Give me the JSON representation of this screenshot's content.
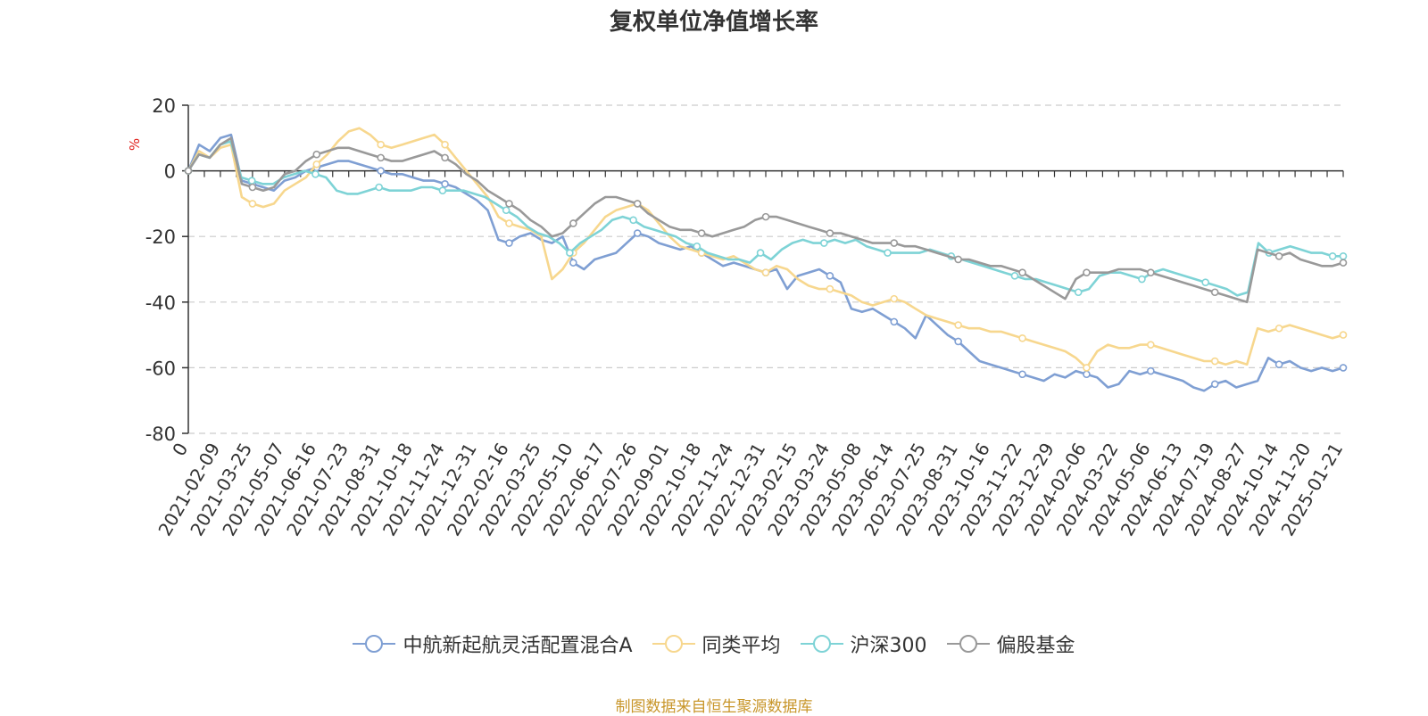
{
  "chart_data": {
    "type": "line",
    "title": "复权单位净值增长率",
    "ylabel": "%",
    "ylim": [
      -80,
      20
    ],
    "yticks": [
      "20",
      "0",
      "-20",
      "-40",
      "-60",
      "-80"
    ],
    "x_origin_label": "0",
    "xticks": [
      "2021-02-09",
      "2021-03-25",
      "2021-05-07",
      "2021-06-16",
      "2021-07-23",
      "2021-08-31",
      "2021-10-18",
      "2021-11-24",
      "2021-12-31",
      "2022-02-16",
      "2022-03-25",
      "2022-05-10",
      "2022-06-17",
      "2022-07-26",
      "2022-09-01",
      "2022-10-18",
      "2022-11-24",
      "2022-12-31",
      "2023-02-15",
      "2023-03-24",
      "2023-05-08",
      "2023-06-14",
      "2023-07-25",
      "2023-08-31",
      "2023-10-16",
      "2023-11-22",
      "2023-12-29",
      "2024-02-06",
      "2024-03-22",
      "2024-05-06",
      "2024-06-13",
      "2024-07-19",
      "2024-08-27",
      "2024-10-14",
      "2024-11-20",
      "2025-01-21"
    ],
    "grid": true,
    "legend_position": "bottom",
    "series": [
      {
        "name": "中航新起航灵活配置混合A",
        "color": "#7f9fd3",
        "values": [
          0,
          8,
          6,
          10,
          11,
          -3,
          -4,
          -5,
          -6,
          -3,
          -2,
          0,
          1,
          2,
          3,
          3,
          2,
          1,
          0,
          -1,
          -1,
          -2,
          -3,
          -3,
          -4,
          -5,
          -7,
          -9,
          -12,
          -21,
          -22,
          -20,
          -19,
          -21,
          -22,
          -20,
          -28,
          -30,
          -27,
          -26,
          -25,
          -22,
          -19,
          -20,
          -22,
          -23,
          -24,
          -23,
          -25,
          -27,
          -29,
          -28,
          -29,
          -30,
          -31,
          -30,
          -36,
          -32,
          -31,
          -30,
          -32,
          -34,
          -42,
          -43,
          -42,
          -44,
          -46,
          -48,
          -51,
          -44,
          -47,
          -50,
          -52,
          -55,
          -58,
          -59,
          -60,
          -61,
          -62,
          -63,
          -64,
          -62,
          -63,
          -61,
          -62,
          -63,
          -66,
          -65,
          -61,
          -62,
          -61,
          -62,
          -63,
          -64,
          -66,
          -67,
          -65,
          -64,
          -66,
          -65,
          -64,
          -57,
          -59,
          -58,
          -60,
          -61,
          -60,
          -61,
          -60
        ]
      },
      {
        "name": "同类平均",
        "color": "#f7d78e",
        "values": [
          0,
          6,
          4,
          7,
          8,
          -8,
          -10,
          -11,
          -10,
          -6,
          -4,
          -2,
          2,
          5,
          9,
          12,
          13,
          11,
          8,
          7,
          8,
          9,
          10,
          11,
          8,
          4,
          0,
          -4,
          -8,
          -14,
          -16,
          -17,
          -18,
          -20,
          -33,
          -30,
          -25,
          -22,
          -18,
          -14,
          -12,
          -11,
          -10,
          -12,
          -16,
          -20,
          -23,
          -24,
          -25,
          -26,
          -27,
          -26,
          -28,
          -30,
          -31,
          -29,
          -30,
          -33,
          -35,
          -36,
          -36,
          -37,
          -38,
          -40,
          -41,
          -40,
          -39,
          -40,
          -42,
          -44,
          -45,
          -46,
          -47,
          -48,
          -48,
          -49,
          -49,
          -50,
          -51,
          -52,
          -53,
          -54,
          -55,
          -57,
          -60,
          -55,
          -53,
          -54,
          -54,
          -53,
          -53,
          -54,
          -55,
          -56,
          -57,
          -58,
          -58,
          -59,
          -58,
          -59,
          -48,
          -49,
          -48,
          -47,
          -48,
          -49,
          -50,
          -51,
          -50
        ]
      },
      {
        "name": "沪深300",
        "color": "#7ed3d6",
        "values": [
          0,
          5,
          4,
          8,
          9,
          -2,
          -3,
          -4,
          -4,
          -2,
          -1,
          0,
          -1,
          -2,
          -6,
          -7,
          -7,
          -6,
          -5,
          -6,
          -6,
          -6,
          -5,
          -5,
          -6,
          -6,
          -6,
          -7,
          -8,
          -10,
          -12,
          -14,
          -17,
          -19,
          -20,
          -22,
          -25,
          -22,
          -20,
          -18,
          -15,
          -14,
          -15,
          -17,
          -18,
          -19,
          -20,
          -22,
          -23,
          -25,
          -26,
          -27,
          -27,
          -28,
          -25,
          -27,
          -24,
          -22,
          -21,
          -22,
          -22,
          -21,
          -22,
          -21,
          -23,
          -24,
          -25,
          -25,
          -25,
          -25,
          -24,
          -25,
          -26,
          -27,
          -28,
          -29,
          -30,
          -31,
          -32,
          -33,
          -33,
          -34,
          -35,
          -36,
          -37,
          -36,
          -32,
          -31,
          -31,
          -32,
          -33,
          -31,
          -30,
          -31,
          -32,
          -33,
          -34,
          -35,
          -36,
          -38,
          -37,
          -22,
          -25,
          -24,
          -23,
          -24,
          -25,
          -25,
          -26,
          -26
        ]
      },
      {
        "name": "偏股基金",
        "color": "#999999",
        "values": [
          0,
          5,
          4,
          8,
          10,
          -4,
          -5,
          -6,
          -5,
          -1,
          0,
          3,
          5,
          6,
          7,
          7,
          6,
          5,
          4,
          3,
          3,
          4,
          5,
          6,
          4,
          2,
          -1,
          -3,
          -6,
          -8,
          -10,
          -12,
          -15,
          -17,
          -20,
          -19,
          -16,
          -13,
          -10,
          -8,
          -8,
          -9,
          -10,
          -13,
          -15,
          -17,
          -18,
          -18,
          -19,
          -20,
          -19,
          -18,
          -17,
          -15,
          -14,
          -14,
          -15,
          -16,
          -17,
          -18,
          -19,
          -19,
          -20,
          -21,
          -22,
          -22,
          -22,
          -23,
          -23,
          -24,
          -25,
          -26,
          -27,
          -27,
          -28,
          -29,
          -29,
          -30,
          -31,
          -33,
          -35,
          -37,
          -39,
          -33,
          -31,
          -31,
          -31,
          -30,
          -30,
          -30,
          -31,
          -32,
          -33,
          -34,
          -35,
          -36,
          -37,
          -38,
          -39,
          -40,
          -24,
          -25,
          -26,
          -25,
          -27,
          -28,
          -29,
          -29,
          -28
        ]
      }
    ]
  },
  "footer": {
    "source": "制图数据来自恒生聚源数据库"
  }
}
